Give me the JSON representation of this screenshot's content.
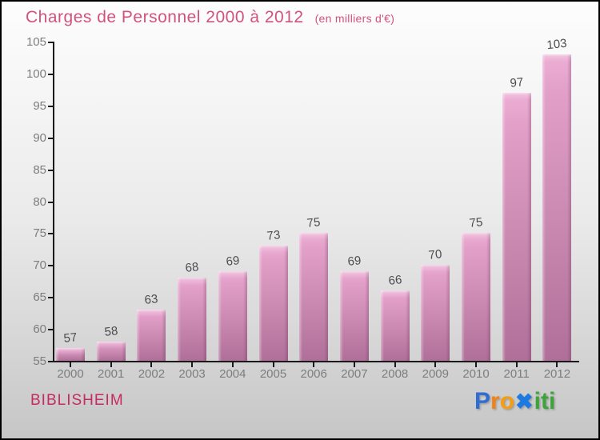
{
  "header": {
    "title": "Charges de Personnel 2000 à 2012",
    "subtitle": "(en milliers d'€)"
  },
  "chart_data": {
    "type": "bar",
    "title": "Charges de Personnel 2000 à 2012",
    "subtitle": "(en milliers d'€)",
    "categories": [
      "2000",
      "2001",
      "2002",
      "2003",
      "2004",
      "2005",
      "2006",
      "2007",
      "2008",
      "2009",
      "2010",
      "2011",
      "2012"
    ],
    "values": [
      57,
      58,
      63,
      68,
      69,
      73,
      75,
      69,
      66,
      70,
      75,
      97,
      103
    ],
    "xlabel": "",
    "ylabel": "",
    "ylim": [
      55,
      105
    ],
    "ytick_step": 5,
    "grid": false,
    "legend": false
  },
  "footer": {
    "municipality": "BIBLISHEIM",
    "brand": {
      "name": "Proxiti",
      "letters": [
        {
          "ch": "P",
          "color": "#2f6cd3"
        },
        {
          "ch": "r",
          "color": "#f28312"
        },
        {
          "ch": "o",
          "color": "#f59d10"
        },
        {
          "ch": "✖",
          "color": "#1e7ae1"
        },
        {
          "ch": "i",
          "color": "#3da43c"
        },
        {
          "ch": "t",
          "color": "#3da43c"
        },
        {
          "ch": "i",
          "color": "#3da43c"
        }
      ]
    }
  },
  "colors": {
    "title": "#d2527e",
    "subtitle": "#d2527e",
    "municipality": "#c62a62",
    "axis": "#1a1a1a",
    "tick_label": "#7d7d7d",
    "value_label": "#4c4c4c",
    "bar_top": "#edafd5",
    "bar_bottom": "#b06f99",
    "background_top": "#fdfdfd",
    "background_bottom": "#c6c6c6"
  }
}
